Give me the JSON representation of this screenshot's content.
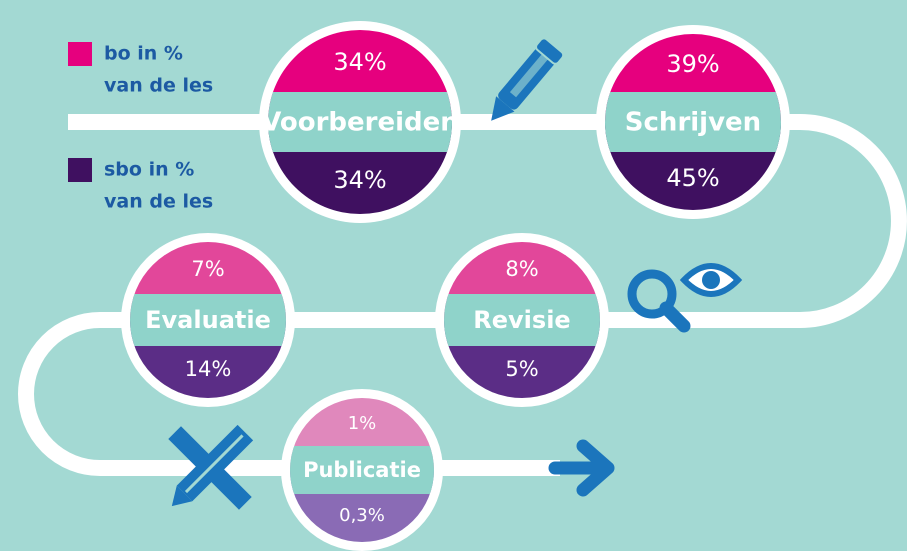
{
  "legend": [
    {
      "line1": "bo in %",
      "line2": "van de les"
    },
    {
      "line1": "sbo in %",
      "line2": "van de les"
    }
  ],
  "stages": [
    {
      "name": "Voorbereiden",
      "bo": "34%",
      "sbo": "34%"
    },
    {
      "name": "Schrijven",
      "bo": "39%",
      "sbo": "45%"
    },
    {
      "name": "Evaluatie",
      "bo": "7%",
      "sbo": "14%"
    },
    {
      "name": "Revisie",
      "bo": "8%",
      "sbo": "5%"
    },
    {
      "name": "Publicatie",
      "bo": "1%",
      "sbo": "0,3%"
    }
  ]
}
